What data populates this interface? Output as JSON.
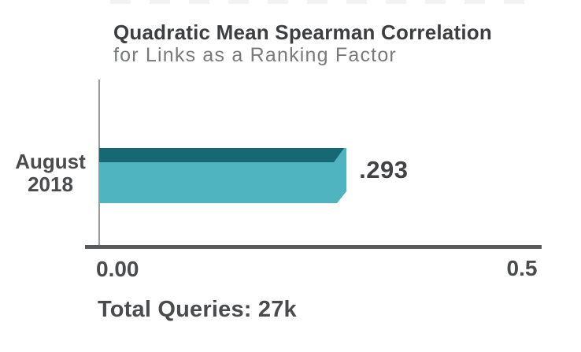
{
  "header": {
    "title": "Quadratic Mean Spearman Correlation",
    "subtitle": "for Links as a Ranking Factor"
  },
  "chart_data": {
    "type": "bar",
    "orientation": "horizontal",
    "title": "Quadratic Mean Spearman Correlation",
    "subtitle": "for Links as a Ranking Factor",
    "categories": [
      "August 2018"
    ],
    "values": [
      0.293
    ],
    "value_labels": [
      ".293"
    ],
    "xlabel": "",
    "ylabel": "",
    "xlim": [
      0,
      0.5
    ],
    "x_ticks": [
      {
        "value": 0.0,
        "label": "0.00"
      },
      {
        "value": 0.5,
        "label": "0.5"
      }
    ],
    "grid": false,
    "legend": "none",
    "footnote": "Total Queries: 27k",
    "colors": {
      "bar_fill": "#4fb4c0",
      "bar_top_band": "#156874",
      "x_axis_line": "#58595b",
      "y_axis_line": "#9a9b9d",
      "title_text": "#3d3e40",
      "subtitle_text": "#78797a",
      "label_text": "#4a4b4d"
    }
  },
  "labels": {
    "category_line1": "August",
    "category_line2": "2018",
    "value": ".293",
    "tick_zero": "0.00",
    "tick_max": "0.5",
    "footnote": "Total Queries: 27k"
  }
}
